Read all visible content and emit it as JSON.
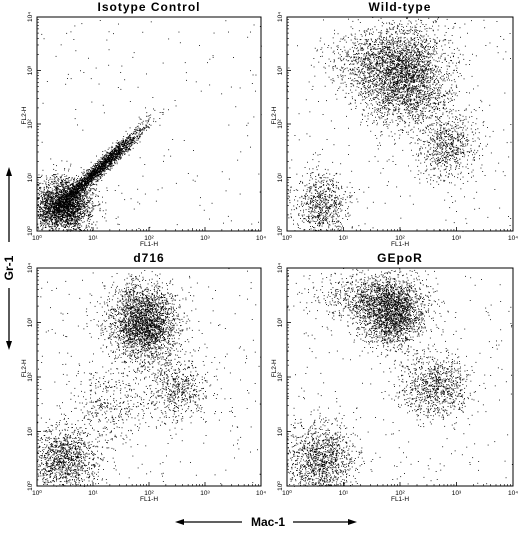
{
  "figure": {
    "y_marker": "Gr-1",
    "x_marker": "Mac-1"
  },
  "chart_data": [
    {
      "type": "scatter",
      "title": "Isotype   Control",
      "xlabel": "FL1-H",
      "ylabel": "FL2-H",
      "xscale": "log",
      "yscale": "log",
      "xlim": [
        1,
        10000
      ],
      "ylim": [
        1,
        10000
      ],
      "xticks": [
        "10⁰",
        "10¹",
        "10²",
        "10³",
        "10⁴"
      ],
      "yticks": [
        "10⁰",
        "10¹",
        "10²",
        "10³",
        "10⁴"
      ],
      "populations": [
        {
          "center_x": 3,
          "center_y": 3,
          "spread_x_decades": 0.25,
          "spread_y_decades": 0.25,
          "weight": 0.55
        },
        {
          "center_x": 12,
          "center_y": 14,
          "spread_x_decades": 0.4,
          "spread_y_decades": 0.4,
          "weight": 0.45,
          "correlated": true
        }
      ],
      "sparse_background": 0.03
    },
    {
      "type": "scatter",
      "title": "Wild-type",
      "xlabel": "FL1-H",
      "ylabel": "FL2-H",
      "xscale": "log",
      "yscale": "log",
      "xlim": [
        1,
        10000
      ],
      "ylim": [
        1,
        10000
      ],
      "xticks": [
        "10⁰",
        "10¹",
        "10²",
        "10³",
        "10⁴"
      ],
      "yticks": [
        "10⁰",
        "10¹",
        "10²",
        "10³",
        "10⁴"
      ],
      "populations": [
        {
          "center_x": 4,
          "center_y": 3,
          "spread_x_decades": 0.25,
          "spread_y_decades": 0.3,
          "weight": 0.14
        },
        {
          "center_x": 120,
          "center_y": 800,
          "spread_x_decades": 0.4,
          "spread_y_decades": 0.45,
          "weight": 0.58
        },
        {
          "center_x": 700,
          "center_y": 40,
          "spread_x_decades": 0.25,
          "spread_y_decades": 0.3,
          "weight": 0.14
        },
        {
          "center_x": 30,
          "center_y": 1500,
          "spread_x_decades": 0.4,
          "spread_y_decades": 0.3,
          "weight": 0.14
        }
      ],
      "sparse_background": 0.05
    },
    {
      "type": "scatter",
      "title": "d716",
      "xlabel": "FL1-H",
      "ylabel": "FL2-H",
      "xscale": "log",
      "yscale": "log",
      "xlim": [
        1,
        10000
      ],
      "ylim": [
        1,
        10000
      ],
      "xticks": [
        "10⁰",
        "10¹",
        "10²",
        "10³",
        "10⁴"
      ],
      "yticks": [
        "10⁰",
        "10¹",
        "10²",
        "10³",
        "10⁴"
      ],
      "populations": [
        {
          "center_x": 3,
          "center_y": 3,
          "spread_x_decades": 0.3,
          "spread_y_decades": 0.3,
          "weight": 0.25
        },
        {
          "center_x": 80,
          "center_y": 1000,
          "spread_x_decades": 0.3,
          "spread_y_decades": 0.35,
          "weight": 0.55
        },
        {
          "center_x": 300,
          "center_y": 60,
          "spread_x_decades": 0.3,
          "spread_y_decades": 0.3,
          "weight": 0.12
        },
        {
          "center_x": 20,
          "center_y": 30,
          "spread_x_decades": 0.35,
          "spread_y_decades": 0.4,
          "weight": 0.08
        }
      ],
      "sparse_background": 0.05
    },
    {
      "type": "scatter",
      "title": "GEpoR",
      "xlabel": "FL1-H",
      "ylabel": "FL2-H",
      "xscale": "log",
      "yscale": "log",
      "xlim": [
        1,
        10000
      ],
      "ylim": [
        1,
        10000
      ],
      "xticks": [
        "10⁰",
        "10¹",
        "10²",
        "10³",
        "10⁴"
      ],
      "yticks": [
        "10⁰",
        "10¹",
        "10²",
        "10³",
        "10⁴"
      ],
      "populations": [
        {
          "center_x": 4,
          "center_y": 3,
          "spread_x_decades": 0.3,
          "spread_y_decades": 0.35,
          "weight": 0.25
        },
        {
          "center_x": 70,
          "center_y": 1500,
          "spread_x_decades": 0.3,
          "spread_y_decades": 0.3,
          "weight": 0.42
        },
        {
          "center_x": 400,
          "center_y": 70,
          "spread_x_decades": 0.3,
          "spread_y_decades": 0.3,
          "weight": 0.18
        },
        {
          "center_x": 25,
          "center_y": 3000,
          "spread_x_decades": 0.5,
          "spread_y_decades": 0.2,
          "weight": 0.15
        }
      ],
      "sparse_background": 0.05
    }
  ]
}
